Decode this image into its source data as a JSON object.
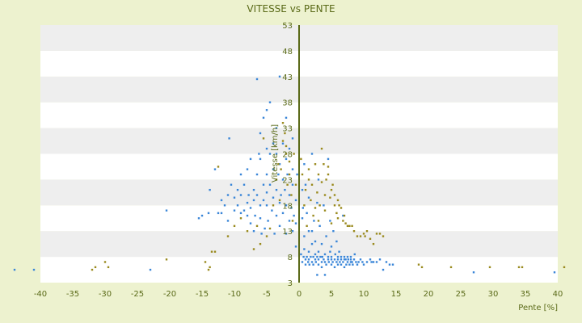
{
  "chart_data": {
    "type": "scatter",
    "title": "VITESSE vs PENTE",
    "xlabel": "Pente [%]",
    "ylabel": "Vitesse [km/h]",
    "xlim": [
      -40,
      40
    ],
    "ylim": [
      3,
      53
    ],
    "x_ticks": [
      "-40",
      "-35",
      "-30",
      "-25",
      "-20",
      "-15",
      "-10",
      "-5",
      "0",
      "5",
      "10",
      "15",
      "20",
      "25",
      "30",
      "35",
      "40"
    ],
    "y_ticks": [
      "3",
      "8",
      "13",
      "18",
      "23",
      "28",
      "33",
      "38",
      "43",
      "48",
      "53"
    ],
    "grid": "horizontal alternating bands",
    "colors": {
      "background": "#edf2cf",
      "plot_band_light": "#ffffff",
      "plot_band_dark": "#eeeeee",
      "text": "#5a6a18",
      "series_blue": "#3a86d8",
      "series_olive": "#9a8a1e"
    },
    "series": [
      {
        "color_key": "series_blue",
        "points": [
          [
            -44,
            5.5
          ],
          [
            -41,
            5.5
          ],
          [
            -23,
            5.5
          ],
          [
            -20.5,
            17
          ],
          [
            -15.5,
            15.5
          ],
          [
            -15,
            16
          ],
          [
            -14,
            16.5
          ],
          [
            -13.8,
            21
          ],
          [
            -13,
            25
          ],
          [
            -12.5,
            16.5
          ],
          [
            -12,
            19
          ],
          [
            -12,
            16.5
          ],
          [
            -11.5,
            18
          ],
          [
            -11,
            20
          ],
          [
            -11,
            15
          ],
          [
            -10.8,
            31
          ],
          [
            -10.5,
            22
          ],
          [
            -10,
            17
          ],
          [
            -10,
            19.5
          ],
          [
            -9.5,
            18
          ],
          [
            -9.5,
            21
          ],
          [
            -9,
            16.5
          ],
          [
            -9,
            24
          ],
          [
            -9,
            20
          ],
          [
            -8.5,
            22
          ],
          [
            -8.5,
            17
          ],
          [
            -8,
            18.5
          ],
          [
            -8,
            16
          ],
          [
            -8,
            25
          ],
          [
            -7.8,
            20
          ],
          [
            -7.5,
            14.5
          ],
          [
            -7.5,
            17.5
          ],
          [
            -7.5,
            27
          ],
          [
            -7,
            21
          ],
          [
            -7,
            13
          ],
          [
            -7,
            19
          ],
          [
            -6.8,
            16
          ],
          [
            -6.5,
            24
          ],
          [
            -6.5,
            42.5
          ],
          [
            -6.5,
            20
          ],
          [
            -6.2,
            28
          ],
          [
            -6,
            15.5
          ],
          [
            -6,
            18
          ],
          [
            -6,
            32
          ],
          [
            -6,
            27
          ],
          [
            -5.8,
            12.5
          ],
          [
            -5.5,
            22
          ],
          [
            -5.5,
            35
          ],
          [
            -5.5,
            19
          ],
          [
            -5.3,
            13.5
          ],
          [
            -5,
            24
          ],
          [
            -5,
            29
          ],
          [
            -5,
            36.5
          ],
          [
            -5,
            18
          ],
          [
            -5,
            20.5
          ],
          [
            -4.8,
            15
          ],
          [
            -4.5,
            28
          ],
          [
            -4.5,
            22
          ],
          [
            -4.5,
            38
          ],
          [
            -4.2,
            17
          ],
          [
            -4,
            25
          ],
          [
            -4,
            30
          ],
          [
            -4,
            19.5
          ],
          [
            -3.8,
            12.5
          ],
          [
            -3.5,
            21
          ],
          [
            -3.5,
            28
          ],
          [
            -3.5,
            16
          ],
          [
            -3.5,
            33
          ],
          [
            -3.2,
            24
          ],
          [
            -3,
            18.5
          ],
          [
            -3,
            26
          ],
          [
            -3,
            14
          ],
          [
            -3,
            43
          ],
          [
            -2.8,
            20
          ],
          [
            -2.5,
            30
          ],
          [
            -2.5,
            16.5
          ],
          [
            -2.5,
            23
          ],
          [
            -2.2,
            21
          ],
          [
            -2,
            12.5
          ],
          [
            -2,
            27
          ],
          [
            -2,
            18
          ],
          [
            -2,
            35
          ],
          [
            -1.8,
            24
          ],
          [
            -1.5,
            15
          ],
          [
            -1.5,
            20
          ],
          [
            -1.5,
            29
          ],
          [
            -1.2,
            17.5
          ],
          [
            -1,
            13
          ],
          [
            -1,
            22
          ],
          [
            -1,
            25
          ],
          [
            -1,
            31
          ],
          [
            -0.8,
            16
          ],
          [
            -0.5,
            19
          ],
          [
            -0.5,
            14.5
          ],
          [
            -0.5,
            10
          ],
          [
            -0.3,
            24
          ],
          [
            0.3,
            8.5
          ],
          [
            0.5,
            21
          ],
          [
            0.5,
            15.5
          ],
          [
            0.5,
            7
          ],
          [
            0.6,
            17.5
          ],
          [
            0.7,
            8
          ],
          [
            0.8,
            26
          ],
          [
            0.8,
            12
          ],
          [
            0.8,
            9.5
          ],
          [
            1,
            7.5
          ],
          [
            1,
            22
          ],
          [
            1,
            6.5
          ],
          [
            1.2,
            8
          ],
          [
            1.2,
            16.5
          ],
          [
            1.4,
            7
          ],
          [
            1.5,
            9
          ],
          [
            1.5,
            13
          ],
          [
            1.5,
            7.5
          ],
          [
            1.5,
            19.5
          ],
          [
            1.6,
            6.5
          ],
          [
            1.8,
            8
          ],
          [
            2,
            7
          ],
          [
            2,
            28
          ],
          [
            2,
            10.5
          ],
          [
            2,
            13
          ],
          [
            2.2,
            8
          ],
          [
            2.2,
            6.5
          ],
          [
            2.3,
            15
          ],
          [
            2.5,
            7.5
          ],
          [
            2.5,
            8.5
          ],
          [
            2.5,
            11
          ],
          [
            2.6,
            7
          ],
          [
            2.8,
            18.5
          ],
          [
            2.8,
            8
          ],
          [
            2.8,
            4.5
          ],
          [
            3,
            7.5
          ],
          [
            3,
            23
          ],
          [
            3,
            9
          ],
          [
            3,
            6.5
          ],
          [
            3.2,
            14
          ],
          [
            3.3,
            8
          ],
          [
            3.5,
            7
          ],
          [
            3.5,
            10.5
          ],
          [
            3.5,
            6
          ],
          [
            3.6,
            8
          ],
          [
            3.8,
            18
          ],
          [
            3.8,
            7.5
          ],
          [
            4,
            8.5
          ],
          [
            4,
            7
          ],
          [
            4,
            4.5
          ],
          [
            4.2,
            12
          ],
          [
            4.2,
            6.5
          ],
          [
            4.5,
            7.5
          ],
          [
            4.5,
            8
          ],
          [
            4.5,
            27
          ],
          [
            4.6,
            7
          ],
          [
            4.8,
            15
          ],
          [
            4.8,
            9
          ],
          [
            5,
            6.5
          ],
          [
            5,
            7.5
          ],
          [
            5,
            8
          ],
          [
            5,
            10
          ],
          [
            5.2,
            7
          ],
          [
            5.3,
            13
          ],
          [
            5.5,
            7.5
          ],
          [
            5.5,
            6
          ],
          [
            5.6,
            8.5
          ],
          [
            5.8,
            7
          ],
          [
            5.8,
            11
          ],
          [
            6,
            7.5
          ],
          [
            6,
            8
          ],
          [
            6,
            6.5
          ],
          [
            6.2,
            9
          ],
          [
            6.3,
            7
          ],
          [
            6.5,
            7.5
          ],
          [
            6.5,
            8
          ],
          [
            6.5,
            6.5
          ],
          [
            6.8,
            7
          ],
          [
            6.8,
            16
          ],
          [
            7,
            7.5
          ],
          [
            7,
            6
          ],
          [
            7,
            8
          ],
          [
            7.2,
            7.5
          ],
          [
            7.3,
            6.5
          ],
          [
            7.5,
            7
          ],
          [
            7.5,
            8
          ],
          [
            7.6,
            7.5
          ],
          [
            7.8,
            6.5
          ],
          [
            8,
            7
          ],
          [
            8,
            8
          ],
          [
            8,
            7.5
          ],
          [
            8.2,
            7
          ],
          [
            8.3,
            6.5
          ],
          [
            8.5,
            7.5
          ],
          [
            8.6,
            8.5
          ],
          [
            8.8,
            7
          ],
          [
            9,
            6.5
          ],
          [
            9.2,
            7
          ],
          [
            9.5,
            7.5
          ],
          [
            9.8,
            7
          ],
          [
            10,
            6.5
          ],
          [
            10.5,
            7
          ],
          [
            11,
            7.5
          ],
          [
            11.2,
            7
          ],
          [
            11.5,
            7
          ],
          [
            12,
            7
          ],
          [
            12.5,
            7.5
          ],
          [
            13,
            5.5
          ],
          [
            13.5,
            7
          ],
          [
            14,
            6.5
          ],
          [
            14.5,
            6.5
          ],
          [
            27,
            5
          ],
          [
            39.5,
            5
          ]
        ]
      },
      {
        "color_key": "series_olive",
        "points": [
          [
            -32,
            5.5
          ],
          [
            -31.5,
            6
          ],
          [
            -30,
            7
          ],
          [
            -29.5,
            6
          ],
          [
            -20.5,
            7.5
          ],
          [
            -14.5,
            7
          ],
          [
            -14,
            5.5
          ],
          [
            -13.8,
            6
          ],
          [
            -13.5,
            9
          ],
          [
            -13,
            9
          ],
          [
            -12.5,
            25.5
          ],
          [
            -11,
            12
          ],
          [
            -10,
            14
          ],
          [
            -9,
            15.5
          ],
          [
            -8,
            13
          ],
          [
            -7,
            9.5
          ],
          [
            -6.5,
            14
          ],
          [
            -6,
            10.5
          ],
          [
            -5.5,
            31
          ],
          [
            -5,
            12
          ],
          [
            -4.5,
            13.5
          ],
          [
            -4,
            18
          ],
          [
            -3.5,
            23
          ],
          [
            -3.2,
            26
          ],
          [
            -3,
            19
          ],
          [
            -2.8,
            25
          ],
          [
            -2.5,
            30.5
          ],
          [
            -2.5,
            34
          ],
          [
            -2.2,
            32
          ],
          [
            -2,
            28
          ],
          [
            -2,
            29.5
          ],
          [
            -1.8,
            22
          ],
          [
            -1.5,
            24
          ],
          [
            -1.5,
            26.5
          ],
          [
            -1.2,
            20
          ],
          [
            -1,
            15
          ],
          [
            -0.8,
            28
          ],
          [
            -0.5,
            22
          ],
          [
            0.3,
            27
          ],
          [
            0.5,
            24
          ],
          [
            0.8,
            18
          ],
          [
            1,
            21
          ],
          [
            1.2,
            14
          ],
          [
            1.5,
            23
          ],
          [
            1.5,
            25
          ],
          [
            1.8,
            19
          ],
          [
            2,
            22
          ],
          [
            2.2,
            16
          ],
          [
            2.5,
            17.5
          ],
          [
            2.5,
            26
          ],
          [
            2.8,
            20.5
          ],
          [
            3,
            24
          ],
          [
            3,
            15
          ],
          [
            3.2,
            18
          ],
          [
            3.5,
            22.5
          ],
          [
            3.5,
            29
          ],
          [
            3.8,
            26
          ],
          [
            4,
            17
          ],
          [
            4,
            20
          ],
          [
            4.2,
            23
          ],
          [
            4.5,
            24
          ],
          [
            4.5,
            25.5
          ],
          [
            4.8,
            19.5
          ],
          [
            5,
            21
          ],
          [
            5,
            14.5
          ],
          [
            5.2,
            22
          ],
          [
            5.5,
            18
          ],
          [
            5.5,
            20
          ],
          [
            5.8,
            16.5
          ],
          [
            6,
            19
          ],
          [
            6,
            15.5
          ],
          [
            6.2,
            18
          ],
          [
            6.5,
            17.5
          ],
          [
            6.8,
            15
          ],
          [
            7,
            16
          ],
          [
            7.2,
            14.5
          ],
          [
            7.5,
            14
          ],
          [
            7.8,
            14
          ],
          [
            8.2,
            14
          ],
          [
            8.5,
            13
          ],
          [
            9,
            12
          ],
          [
            9.5,
            12
          ],
          [
            10,
            12.5
          ],
          [
            10.2,
            12
          ],
          [
            10.5,
            13
          ],
          [
            11,
            11.5
          ],
          [
            11.5,
            10.5
          ],
          [
            12,
            12.5
          ],
          [
            12.5,
            12.5
          ],
          [
            13,
            12
          ],
          [
            18.5,
            6.5
          ],
          [
            19,
            6
          ],
          [
            23.5,
            6
          ],
          [
            29.5,
            6
          ],
          [
            34,
            6
          ],
          [
            34.5,
            6
          ],
          [
            41,
            6
          ]
        ]
      }
    ]
  }
}
